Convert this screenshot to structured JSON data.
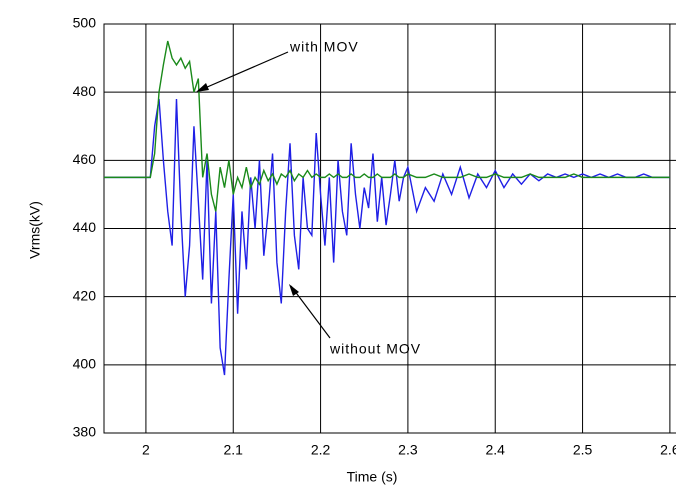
{
  "chart_data": {
    "type": "line",
    "xlabel": "Time (s)",
    "ylabel": "Vrms(kV)",
    "x": [
      1.952,
      2.0,
      2.005,
      2.01,
      2.015,
      2.02,
      2.025,
      2.03,
      2.035,
      2.04,
      2.045,
      2.05,
      2.055,
      2.06,
      2.065,
      2.07,
      2.075,
      2.08,
      2.085,
      2.09,
      2.095,
      2.1,
      2.105,
      2.11,
      2.115,
      2.12,
      2.125,
      2.13,
      2.135,
      2.14,
      2.145,
      2.15,
      2.155,
      2.16,
      2.165,
      2.17,
      2.175,
      2.18,
      2.185,
      2.19,
      2.195,
      2.2,
      2.205,
      2.21,
      2.215,
      2.22,
      2.225,
      2.23,
      2.235,
      2.24,
      2.245,
      2.25,
      2.255,
      2.26,
      2.265,
      2.27,
      2.275,
      2.28,
      2.285,
      2.29,
      2.295,
      2.3,
      2.31,
      2.32,
      2.33,
      2.34,
      2.35,
      2.36,
      2.37,
      2.38,
      2.39,
      2.4,
      2.41,
      2.42,
      2.43,
      2.44,
      2.45,
      2.46,
      2.47,
      2.48,
      2.49,
      2.5,
      2.51,
      2.52,
      2.53,
      2.54,
      2.55,
      2.56,
      2.57,
      2.58,
      2.59,
      2.6
    ],
    "series": [
      {
        "name": "without MOV",
        "color": "#1f1fe6",
        "values": [
          455,
          455,
          455,
          470,
          478,
          460,
          445,
          435,
          478,
          445,
          420,
          435,
          470,
          448,
          425,
          460,
          418,
          445,
          405,
          397,
          425,
          450,
          415,
          445,
          428,
          455,
          440,
          460,
          432,
          445,
          462,
          430,
          418,
          445,
          465,
          438,
          428,
          455,
          440,
          438,
          468,
          450,
          435,
          455,
          430,
          460,
          445,
          438,
          465,
          450,
          440,
          452,
          446,
          462,
          442,
          455,
          441,
          450,
          460,
          448,
          455,
          458,
          445,
          452,
          448,
          456,
          450,
          458,
          449,
          456,
          452,
          457,
          452,
          456,
          453,
          456,
          454,
          456,
          455,
          456,
          455,
          456,
          455,
          456,
          455,
          456,
          455,
          455,
          456,
          455,
          455,
          455
        ]
      },
      {
        "name": "with MOV",
        "color": "#1a8a1a",
        "values": [
          455,
          455,
          455,
          462,
          480,
          488,
          495,
          490,
          488,
          490,
          487,
          489,
          480,
          484,
          455,
          462,
          450,
          445,
          458,
          452,
          460,
          450,
          455,
          452,
          458,
          452,
          455,
          453,
          457,
          454,
          456,
          453,
          456,
          455,
          457,
          454,
          456,
          455,
          457,
          455,
          456,
          455,
          455,
          456,
          455,
          456,
          455,
          455,
          456,
          455,
          455,
          456,
          455,
          455,
          456,
          455,
          455,
          455,
          456,
          455,
          455,
          456,
          455,
          455,
          456,
          455,
          455,
          455,
          456,
          455,
          455,
          456,
          455,
          455,
          455,
          456,
          455,
          455,
          455,
          455,
          456,
          455,
          455,
          455,
          455,
          455,
          455,
          455,
          455,
          455,
          455,
          455
        ]
      }
    ],
    "annotations": [
      "with MOV",
      "without MOV"
    ],
    "xlim": [
      1.952,
      2.607
    ],
    "xticks": [
      2,
      2.1,
      2.2,
      2.3,
      2.4,
      2.5,
      2.6
    ],
    "ylim": [
      380,
      500
    ],
    "yticks": [
      380,
      400,
      420,
      440,
      460,
      480,
      500
    ],
    "grid": true
  }
}
